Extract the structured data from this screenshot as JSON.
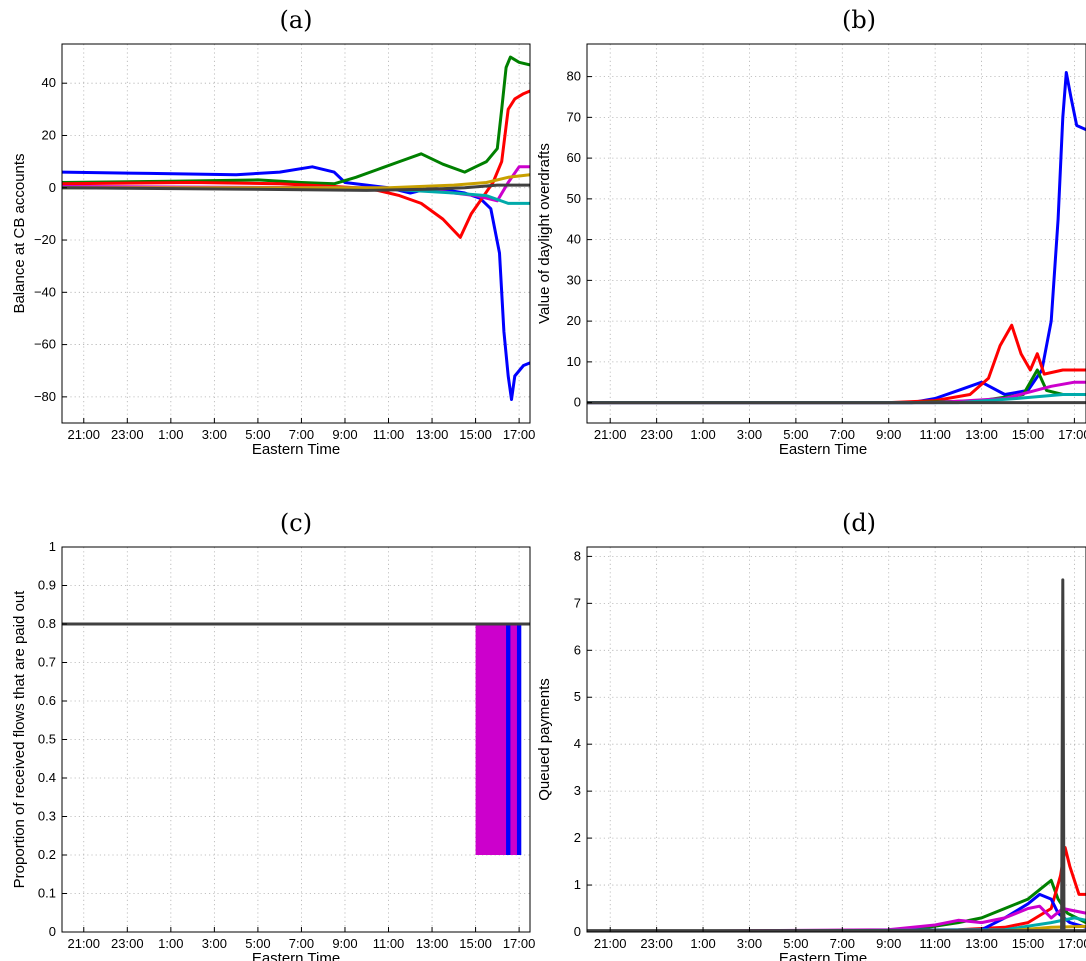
{
  "chart_data": [
    {
      "panel": "(a)",
      "type": "line",
      "title": "(a)",
      "xlabel": "Eastern Time",
      "ylabel": "Balance at CB accounts",
      "x_tick_labels": [
        "21:00",
        "23:00",
        "1:00",
        "3:00",
        "5:00",
        "7:00",
        "9:00",
        "11:00",
        "13:00",
        "15:00",
        "17:00"
      ],
      "xlim": [
        0,
        21.5
      ],
      "ylim": [
        -90,
        55
      ],
      "y_ticks": [
        40,
        20,
        0,
        -20,
        -40,
        -60,
        -80
      ],
      "y_tick_labels": [
        "40",
        "20",
        "0",
        "−20",
        "−40",
        "−60",
        "−80"
      ],
      "grid": true,
      "series": [
        {
          "color": "#0000ff",
          "points": [
            [
              0,
              6
            ],
            [
              4,
              5.5
            ],
            [
              8,
              5
            ],
            [
              10,
              6
            ],
            [
              11.5,
              8
            ],
            [
              12.5,
              6
            ],
            [
              13,
              2
            ],
            [
              14,
              1
            ],
            [
              15,
              0
            ],
            [
              16,
              -2
            ],
            [
              17,
              0
            ],
            [
              18.5,
              -2
            ],
            [
              19.2,
              -4
            ],
            [
              19.7,
              -8
            ],
            [
              20.1,
              -25
            ],
            [
              20.3,
              -55
            ],
            [
              20.5,
              -72
            ],
            [
              20.65,
              -81
            ],
            [
              20.8,
              -72
            ],
            [
              21.2,
              -68
            ],
            [
              21.5,
              -67
            ]
          ]
        },
        {
          "color": "#008000",
          "points": [
            [
              0,
              2
            ],
            [
              5,
              2.5
            ],
            [
              9,
              3
            ],
            [
              11,
              2
            ],
            [
              12.5,
              1.5
            ],
            [
              13.5,
              4
            ],
            [
              14.5,
              7
            ],
            [
              15.5,
              10
            ],
            [
              16.5,
              13
            ],
            [
              17.5,
              9
            ],
            [
              18.5,
              6
            ],
            [
              19,
              8
            ],
            [
              19.5,
              10
            ],
            [
              20,
              15
            ],
            [
              20.2,
              30
            ],
            [
              20.4,
              46
            ],
            [
              20.6,
              50
            ],
            [
              21,
              48
            ],
            [
              21.5,
              47
            ]
          ]
        },
        {
          "color": "#ff0000",
          "points": [
            [
              0,
              1.5
            ],
            [
              6,
              2
            ],
            [
              10,
              1.5
            ],
            [
              12.5,
              0.5
            ],
            [
              13.5,
              0
            ],
            [
              14.5,
              -1
            ],
            [
              15.5,
              -3
            ],
            [
              16.5,
              -6
            ],
            [
              17.5,
              -12
            ],
            [
              18.3,
              -19
            ],
            [
              18.8,
              -10
            ],
            [
              19.3,
              -4
            ],
            [
              19.8,
              2
            ],
            [
              20.2,
              10
            ],
            [
              20.5,
              30
            ],
            [
              20.8,
              34
            ],
            [
              21.2,
              36
            ],
            [
              21.5,
              37
            ]
          ]
        },
        {
          "color": "#cc00cc",
          "points": [
            [
              0,
              0.5
            ],
            [
              14,
              0
            ],
            [
              17,
              -1
            ],
            [
              19,
              -3
            ],
            [
              20,
              -5
            ],
            [
              20.5,
              2
            ],
            [
              21,
              8
            ],
            [
              21.5,
              8
            ]
          ]
        },
        {
          "color": "#00aaaa",
          "points": [
            [
              0,
              0
            ],
            [
              15,
              -0.5
            ],
            [
              18,
              -2
            ],
            [
              19.5,
              -3
            ],
            [
              20.5,
              -6
            ],
            [
              21.5,
              -6
            ]
          ]
        },
        {
          "color": "#c8a000",
          "points": [
            [
              0,
              0
            ],
            [
              15,
              0
            ],
            [
              18,
              1
            ],
            [
              19.5,
              2
            ],
            [
              20.5,
              4
            ],
            [
              21.5,
              5
            ]
          ]
        },
        {
          "color": "#404040",
          "points": [
            [
              0,
              0
            ],
            [
              8,
              -0.5
            ],
            [
              14,
              -1
            ],
            [
              17,
              -0.5
            ],
            [
              18.5,
              0
            ],
            [
              20,
              1
            ],
            [
              21.5,
              1
            ]
          ]
        }
      ]
    },
    {
      "panel": "(b)",
      "type": "line",
      "title": "(b)",
      "xlabel": "Eastern Time",
      "ylabel": "Value of daylight overdrafts",
      "x_tick_labels": [
        "21:00",
        "23:00",
        "1:00",
        "3:00",
        "5:00",
        "7:00",
        "9:00",
        "11:00",
        "13:00",
        "15:00",
        "17:00"
      ],
      "xlim": [
        0,
        21.5
      ],
      "ylim": [
        -5,
        88
      ],
      "y_ticks": [
        80,
        70,
        60,
        50,
        40,
        30,
        20,
        10,
        0
      ],
      "y_tick_labels": [
        "80",
        "70",
        "60",
        "50",
        "40",
        "30",
        "20",
        "10",
        "0"
      ],
      "grid": true,
      "series": [
        {
          "color": "#0000ff",
          "points": [
            [
              0,
              0
            ],
            [
              12,
              0
            ],
            [
              14,
              0
            ],
            [
              15,
              1
            ],
            [
              16,
              3
            ],
            [
              17,
              5
            ],
            [
              18,
              2
            ],
            [
              19,
              3
            ],
            [
              19.6,
              8
            ],
            [
              20,
              20
            ],
            [
              20.3,
              45
            ],
            [
              20.5,
              70
            ],
            [
              20.65,
              81
            ],
            [
              20.85,
              75
            ],
            [
              21.1,
              68
            ],
            [
              21.5,
              67
            ]
          ]
        },
        {
          "color": "#ff0000",
          "points": [
            [
              0,
              0
            ],
            [
              13,
              0
            ],
            [
              15,
              0.5
            ],
            [
              16.5,
              2
            ],
            [
              17.3,
              6
            ],
            [
              17.8,
              14
            ],
            [
              18.3,
              19
            ],
            [
              18.7,
              12
            ],
            [
              19.1,
              8
            ],
            [
              19.4,
              12
            ],
            [
              19.7,
              7
            ],
            [
              20.5,
              8
            ],
            [
              21.5,
              8
            ]
          ]
        },
        {
          "color": "#008000",
          "points": [
            [
              0,
              0
            ],
            [
              14,
              0
            ],
            [
              17,
              0.5
            ],
            [
              18.8,
              2
            ],
            [
              19.4,
              8
            ],
            [
              19.8,
              3
            ],
            [
              20.5,
              2
            ],
            [
              21.5,
              2
            ]
          ]
        },
        {
          "color": "#cc00cc",
          "points": [
            [
              0,
              0
            ],
            [
              15,
              0
            ],
            [
              18,
              1
            ],
            [
              20,
              4
            ],
            [
              21,
              5
            ],
            [
              21.5,
              5
            ]
          ]
        },
        {
          "color": "#00aaaa",
          "points": [
            [
              0,
              0
            ],
            [
              16,
              0
            ],
            [
              18.5,
              1
            ],
            [
              20.5,
              2
            ],
            [
              21.5,
              2
            ]
          ]
        },
        {
          "color": "#404040",
          "points": [
            [
              0,
              0
            ],
            [
              21.5,
              0
            ]
          ]
        }
      ]
    },
    {
      "panel": "(c)",
      "type": "line",
      "title": "(c)",
      "xlabel": "Eastern Time",
      "ylabel": "Proportion of received flows that are paid out",
      "x_tick_labels": [
        "21:00",
        "23:00",
        "1:00",
        "3:00",
        "5:00",
        "7:00",
        "9:00",
        "11:00",
        "13:00",
        "15:00",
        "17:00"
      ],
      "xlim": [
        0,
        21.5
      ],
      "ylim": [
        0,
        1
      ],
      "y_ticks": [
        1,
        0.9,
        0.8,
        0.7,
        0.6,
        0.5,
        0.4,
        0.3,
        0.2,
        0.1,
        0
      ],
      "y_tick_labels": [
        "1",
        "0.9",
        "0.8",
        "0.7",
        "0.6",
        "0.5",
        "0.4",
        "0.3",
        "0.2",
        "0.1",
        "0"
      ],
      "grid": true,
      "bands": [
        {
          "color": "#cc00cc",
          "x_range": [
            19.0,
            21.0
          ],
          "y_range": [
            0.2,
            0.8
          ]
        },
        {
          "color": "#0000ff",
          "x_range": [
            20.4,
            20.6
          ],
          "y_range": [
            0.2,
            0.8
          ]
        },
        {
          "color": "#0000ff",
          "x_range": [
            20.9,
            21.1
          ],
          "y_range": [
            0.2,
            0.8
          ]
        }
      ],
      "series": [
        {
          "color": "#404040",
          "points": [
            [
              0,
              0.8
            ],
            [
              21.5,
              0.8
            ]
          ]
        }
      ]
    },
    {
      "panel": "(d)",
      "type": "line",
      "title": "(d)",
      "xlabel": "Eastern Time",
      "ylabel": "Queued payments",
      "x_tick_labels": [
        "21:00",
        "23:00",
        "1:00",
        "3:00",
        "5:00",
        "7:00",
        "9:00",
        "11:00",
        "13:00",
        "15:00",
        "17:00"
      ],
      "xlim": [
        0,
        21.5
      ],
      "ylim": [
        0,
        8.2
      ],
      "y_ticks": [
        8,
        7,
        6,
        5,
        4,
        3,
        2,
        1,
        0
      ],
      "y_tick_labels": [
        "8",
        "7",
        "6",
        "5",
        "4",
        "3",
        "2",
        "1",
        "0"
      ],
      "grid": true,
      "series": [
        {
          "color": "#008000",
          "points": [
            [
              0,
              0
            ],
            [
              12,
              0.02
            ],
            [
              14,
              0.05
            ],
            [
              16,
              0.2
            ],
            [
              17,
              0.3
            ],
            [
              18,
              0.5
            ],
            [
              19,
              0.7
            ],
            [
              19.5,
              0.9
            ],
            [
              20,
              1.1
            ],
            [
              20.3,
              0.7
            ],
            [
              20.7,
              0.4
            ],
            [
              21.5,
              0.2
            ]
          ]
        },
        {
          "color": "#ff0000",
          "points": [
            [
              0,
              0
            ],
            [
              16,
              0.05
            ],
            [
              18,
              0.1
            ],
            [
              19,
              0.2
            ],
            [
              20,
              0.5
            ],
            [
              20.4,
              1.2
            ],
            [
              20.6,
              1.8
            ],
            [
              20.8,
              1.4
            ],
            [
              21.2,
              0.8
            ],
            [
              21.5,
              0.8
            ]
          ]
        },
        {
          "color": "#0000ff",
          "points": [
            [
              0,
              0
            ],
            [
              17,
              0.05
            ],
            [
              18,
              0.3
            ],
            [
              19,
              0.6
            ],
            [
              19.5,
              0.8
            ],
            [
              20,
              0.7
            ],
            [
              20.3,
              0.4
            ],
            [
              20.8,
              0.2
            ],
            [
              21.5,
              0.1
            ]
          ]
        },
        {
          "color": "#cc00cc",
          "points": [
            [
              0,
              0
            ],
            [
              13,
              0.05
            ],
            [
              15,
              0.15
            ],
            [
              16,
              0.25
            ],
            [
              17,
              0.2
            ],
            [
              18,
              0.3
            ],
            [
              19,
              0.5
            ],
            [
              19.5,
              0.55
            ],
            [
              20,
              0.3
            ],
            [
              20.5,
              0.5
            ],
            [
              21.5,
              0.4
            ]
          ]
        },
        {
          "color": "#00aaaa",
          "points": [
            [
              0,
              0
            ],
            [
              18,
              0.05
            ],
            [
              20,
              0.2
            ],
            [
              21,
              0.3
            ],
            [
              21.5,
              0.25
            ]
          ]
        },
        {
          "color": "#c8a000",
          "points": [
            [
              0,
              0
            ],
            [
              18,
              0.02
            ],
            [
              20,
              0.1
            ],
            [
              21.5,
              0.12
            ]
          ]
        },
        {
          "color": "#404040",
          "points": [
            [
              0,
              0.03
            ],
            [
              20.45,
              0.03
            ],
            [
              20.5,
              7.5
            ],
            [
              20.55,
              0.03
            ],
            [
              21.5,
              0.03
            ]
          ]
        }
      ]
    }
  ]
}
